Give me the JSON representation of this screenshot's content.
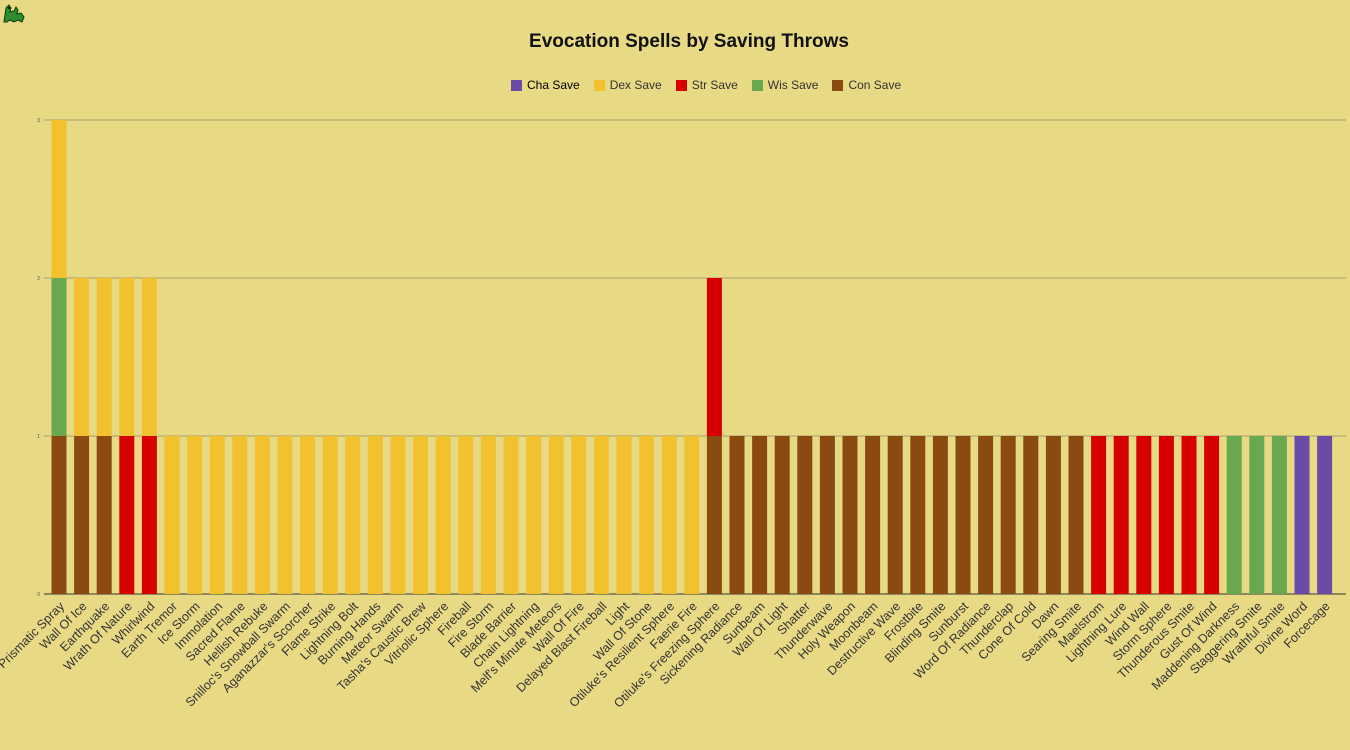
{
  "chart_data": {
    "type": "bar",
    "stacked": true,
    "title": "Evocation Spells by Saving Throws",
    "legend_position": "top",
    "grid": true,
    "ylim": [
      0,
      3
    ],
    "yticks": [
      "0",
      "1",
      "2",
      "3"
    ],
    "categories": [
      "Prismatic Spray",
      "Wall Of Ice",
      "Earthquake",
      "Wrath Of Nature",
      "Whirlwind",
      "Earth Tremor",
      "Ice Storm",
      "Immolation",
      "Sacred Flame",
      "Hellish Rebuke",
      "Snilloc's Snowball Swarm",
      "Aganazzar's Scorcher",
      "Flame Strike",
      "Lightning Bolt",
      "Burning Hands",
      "Meteor Swarm",
      "Tasha's Caustic Brew",
      "Vitriolic Sphere",
      "Fireball",
      "Fire Storm",
      "Blade Barrier",
      "Chain Lightning",
      "Melf's Minute Meteors",
      "Wall Of Fire",
      "Delayed Blast Fireball",
      "Light",
      "Wall Of Stone",
      "Otiluke's Resilient Sphere",
      "Faerie Fire",
      "Otiluke's Freezing Sphere",
      "Sickening Radiance",
      "Sunbeam",
      "Wall Of Light",
      "Shatter",
      "Thunderwave",
      "Holy Weapon",
      "Moonbeam",
      "Destructive Wave",
      "Frostbite",
      "Blinding Smite",
      "Sunburst",
      "Word Of Radiance",
      "Thunderclap",
      "Cone Of Cold",
      "Dawn",
      "Searing Smite",
      "Maelstrom",
      "Lightning Lure",
      "Wind Wall",
      "Storm Sphere",
      "Thunderous Smite",
      "Gust Of Wind",
      "Maddening Darkness",
      "Staggering Smite",
      "Wrathful Smite",
      "Divine Word",
      "Forcecage"
    ],
    "series": [
      {
        "name": "Cha Save",
        "color": "#6a4ca8",
        "values": [
          0,
          0,
          0,
          0,
          0,
          0,
          0,
          0,
          0,
          0,
          0,
          0,
          0,
          0,
          0,
          0,
          0,
          0,
          0,
          0,
          0,
          0,
          0,
          0,
          0,
          0,
          0,
          0,
          0,
          0,
          0,
          0,
          0,
          0,
          0,
          0,
          0,
          0,
          0,
          0,
          0,
          0,
          0,
          0,
          0,
          0,
          0,
          0,
          0,
          0,
          0,
          0,
          0,
          0,
          0,
          1,
          1
        ]
      },
      {
        "name": "Dex Save",
        "color": "#f2c12e",
        "values": [
          1,
          1,
          1,
          1,
          1,
          1,
          1,
          1,
          1,
          1,
          1,
          1,
          1,
          1,
          1,
          1,
          1,
          1,
          1,
          1,
          1,
          1,
          1,
          1,
          1,
          1,
          1,
          1,
          1,
          0,
          0,
          0,
          0,
          0,
          0,
          0,
          0,
          0,
          0,
          0,
          0,
          0,
          0,
          0,
          0,
          0,
          0,
          0,
          0,
          0,
          0,
          0,
          0,
          0,
          0,
          0,
          0
        ]
      },
      {
        "name": "Str Save",
        "color": "#d60000",
        "values": [
          0,
          0,
          0,
          1,
          1,
          0,
          0,
          0,
          0,
          0,
          0,
          0,
          0,
          0,
          0,
          0,
          0,
          0,
          0,
          0,
          0,
          0,
          0,
          0,
          0,
          0,
          0,
          0,
          0,
          1,
          0,
          0,
          0,
          0,
          0,
          0,
          0,
          0,
          0,
          0,
          0,
          0,
          0,
          0,
          0,
          0,
          1,
          1,
          1,
          1,
          1,
          1,
          0,
          0,
          0,
          0,
          0
        ]
      },
      {
        "name": "Wis Save",
        "color": "#6aa84f",
        "values": [
          1,
          0,
          0,
          0,
          0,
          0,
          0,
          0,
          0,
          0,
          0,
          0,
          0,
          0,
          0,
          0,
          0,
          0,
          0,
          0,
          0,
          0,
          0,
          0,
          0,
          0,
          0,
          0,
          0,
          0,
          0,
          0,
          0,
          0,
          0,
          0,
          0,
          0,
          0,
          0,
          0,
          0,
          0,
          0,
          0,
          0,
          0,
          0,
          0,
          0,
          0,
          0,
          1,
          1,
          1,
          0,
          0
        ]
      },
      {
        "name": "Con Save",
        "color": "#8b4a0f",
        "values": [
          1,
          1,
          1,
          0,
          0,
          0,
          0,
          0,
          0,
          0,
          0,
          0,
          0,
          0,
          0,
          0,
          0,
          0,
          0,
          0,
          0,
          0,
          0,
          0,
          0,
          0,
          0,
          0,
          0,
          1,
          1,
          1,
          1,
          1,
          1,
          1,
          1,
          1,
          1,
          1,
          1,
          1,
          1,
          1,
          1,
          1,
          0,
          0,
          0,
          0,
          0,
          0,
          0,
          0,
          0,
          0,
          0
        ]
      }
    ],
    "stack_order": [
      "Con Save",
      "Str Save",
      "Wis Save",
      "Dex Save",
      "Cha Save"
    ]
  }
}
